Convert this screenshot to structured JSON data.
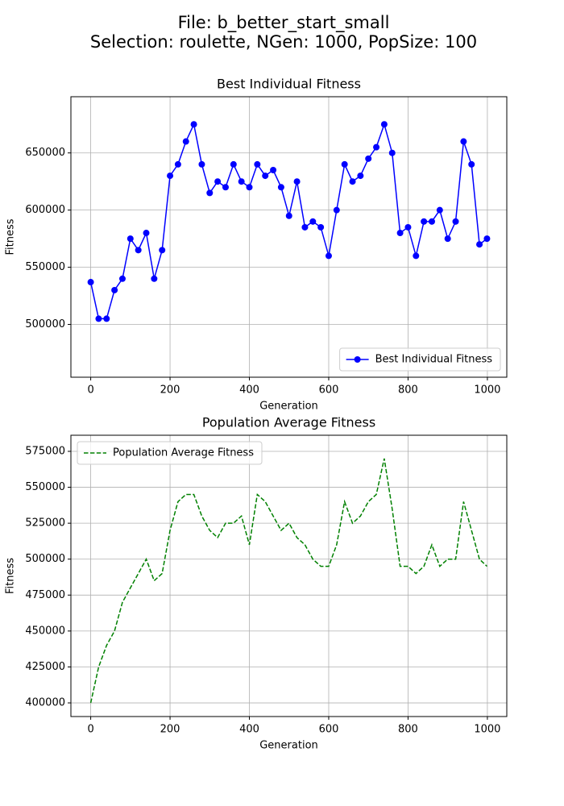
{
  "figure_title": [
    "File: b_better_start_small",
    "Selection: roulette, NGen: 1000, PopSize: 100"
  ],
  "chart_data": [
    {
      "type": "line",
      "title": "Best Individual Fitness",
      "xlabel": "Generation",
      "ylabel": "Fitness",
      "x": [
        0,
        20,
        40,
        60,
        80,
        100,
        120,
        140,
        160,
        180,
        200,
        220,
        240,
        260,
        280,
        300,
        320,
        340,
        360,
        380,
        400,
        420,
        440,
        460,
        480,
        500,
        520,
        540,
        560,
        580,
        600,
        620,
        640,
        660,
        680,
        700,
        720,
        740,
        760,
        780,
        800,
        820,
        840,
        860,
        880,
        900,
        920,
        940,
        960,
        980,
        999
      ],
      "series": [
        {
          "name": "Best Individual Fitness",
          "color": "#0000ff",
          "linestyle": "solid",
          "marker": "circle",
          "values": [
            537000,
            505000,
            505000,
            530000,
            540000,
            575000,
            565000,
            580000,
            540000,
            565000,
            630000,
            640000,
            660000,
            675000,
            640000,
            615000,
            625000,
            620000,
            640000,
            625000,
            620000,
            640000,
            630000,
            635000,
            620000,
            595000,
            625000,
            585000,
            590000,
            585000,
            560000,
            600000,
            640000,
            625000,
            630000,
            645000,
            655000,
            675000,
            650000,
            580000,
            585000,
            560000,
            590000,
            590000,
            600000,
            575000,
            590000,
            660000,
            640000,
            570000,
            575000
          ]
        }
      ],
      "xlim": [
        -49.95,
        1048.95
      ],
      "ylim": [
        453850,
        699150
      ],
      "xticks": [
        0,
        200,
        400,
        600,
        800,
        1000
      ],
      "yticks": [
        500000,
        550000,
        600000,
        650000
      ],
      "grid": true,
      "legend": "lower right"
    },
    {
      "type": "line",
      "title": "Population Average Fitness",
      "xlabel": "Generation",
      "ylabel": "Fitness",
      "x": [
        0,
        20,
        40,
        60,
        80,
        100,
        120,
        140,
        160,
        180,
        200,
        220,
        240,
        260,
        280,
        300,
        320,
        340,
        360,
        380,
        400,
        420,
        440,
        460,
        480,
        500,
        520,
        540,
        560,
        580,
        600,
        620,
        640,
        660,
        680,
        700,
        720,
        740,
        760,
        780,
        800,
        820,
        840,
        860,
        880,
        900,
        920,
        940,
        960,
        980,
        999
      ],
      "series": [
        {
          "name": "Population Average Fitness",
          "color": "#008000",
          "linestyle": "dashed",
          "marker": null,
          "values": [
            400000,
            425000,
            440000,
            450000,
            470000,
            480000,
            490000,
            500000,
            485000,
            490000,
            520000,
            540000,
            545000,
            545000,
            530000,
            520000,
            515000,
            525000,
            525000,
            530000,
            510000,
            545000,
            540000,
            530000,
            520000,
            525000,
            515000,
            510000,
            500000,
            495000,
            495000,
            510000,
            540000,
            525000,
            530000,
            540000,
            545000,
            570000,
            535000,
            495000,
            495000,
            490000,
            495000,
            510000,
            495000,
            500000,
            500000,
            540000,
            520000,
            500000,
            495000
          ]
        }
      ],
      "xlim": [
        -49.95,
        1048.95
      ],
      "ylim": [
        390500,
        586200
      ],
      "xticks": [
        0,
        200,
        400,
        600,
        800,
        1000
      ],
      "yticks": [
        400000,
        425000,
        450000,
        475000,
        500000,
        525000,
        550000,
        575000
      ],
      "grid": true,
      "legend": "upper left"
    }
  ]
}
